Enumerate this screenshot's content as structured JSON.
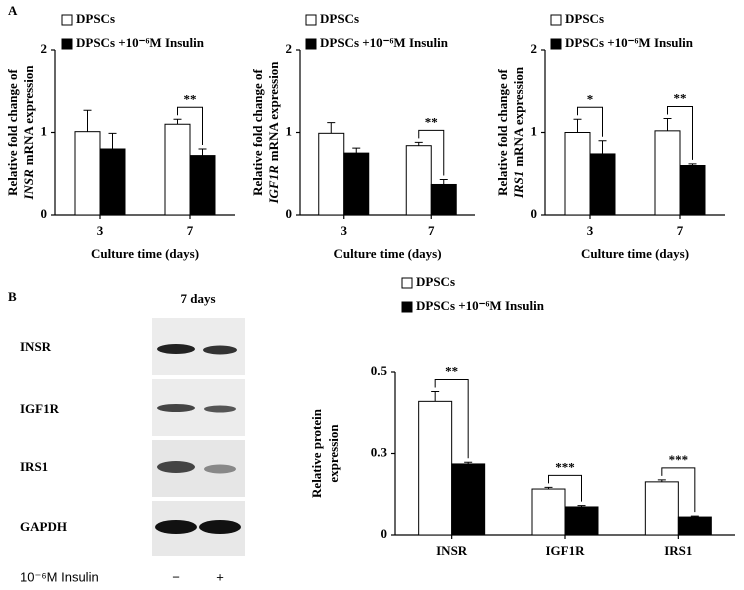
{
  "panels": [
    "A",
    "B"
  ],
  "chart_data": [
    {
      "type": "bar",
      "ylabel": {
        "line1": "Relative fold change of",
        "gene": "INSR",
        "line2": "mRNA expression"
      },
      "xlabel": "Culture time (days)",
      "categories": [
        "3",
        "7"
      ],
      "ylim": [
        0,
        2
      ],
      "yticks": [
        0,
        1,
        2
      ],
      "series": [
        {
          "name": "DPSCs",
          "color": "#ffffff",
          "values": [
            1.01,
            1.1
          ],
          "errors": [
            0.26,
            0.06
          ]
        },
        {
          "name": "DPSCs +10⁻⁶M Insulin",
          "color": "#000000",
          "values": [
            0.8,
            0.72
          ],
          "errors": [
            0.19,
            0.08
          ]
        }
      ],
      "significance": [
        null,
        "**"
      ]
    },
    {
      "type": "bar",
      "ylabel": {
        "line1": "Relative fold change of",
        "gene": "IGF1R",
        "line2": "mRNA expression"
      },
      "xlabel": "Culture time (days)",
      "categories": [
        "3",
        "7"
      ],
      "ylim": [
        0,
        2
      ],
      "yticks": [
        0,
        1,
        2
      ],
      "series": [
        {
          "name": "DPSCs",
          "color": "#ffffff",
          "values": [
            0.99,
            0.84
          ],
          "errors": [
            0.13,
            0.04
          ]
        },
        {
          "name": "DPSCs +10⁻⁶M Insulin",
          "color": "#000000",
          "values": [
            0.75,
            0.37
          ],
          "errors": [
            0.06,
            0.06
          ]
        }
      ],
      "significance": [
        null,
        "**"
      ]
    },
    {
      "type": "bar",
      "ylabel": {
        "line1": "Relative fold change of",
        "gene": "IRS1",
        "line2": "mRNA expression"
      },
      "xlabel": "Culture time (days)",
      "categories": [
        "3",
        "7"
      ],
      "ylim": [
        0,
        2
      ],
      "yticks": [
        0,
        1,
        2
      ],
      "series": [
        {
          "name": "DPSCs",
          "color": "#ffffff",
          "values": [
            1.0,
            1.02
          ],
          "errors": [
            0.16,
            0.15
          ]
        },
        {
          "name": "DPSCs +10⁻⁶M Insulin",
          "color": "#000000",
          "values": [
            0.74,
            0.6
          ],
          "errors": [
            0.16,
            0.02
          ]
        }
      ],
      "significance": [
        "*",
        "**"
      ]
    },
    {
      "type": "bar",
      "ylabel": {
        "line1": "Relative protein",
        "line2": "expression"
      },
      "categories": [
        "INSR",
        "IGF1R",
        "IRS1"
      ],
      "ylim": [
        0,
        0.5
      ],
      "yticks": [
        0,
        {
          "value": 0.25,
          "label": "0.3"
        },
        0.5
      ],
      "series": [
        {
          "name": "DPSCs",
          "color": "#ffffff",
          "values": [
            0.41,
            0.141,
            0.163
          ],
          "errors": [
            0.03,
            0.005,
            0.006
          ]
        },
        {
          "name": "DPSCs +10⁻⁶M Insulin",
          "color": "#000000",
          "values": [
            0.218,
            0.086,
            0.055
          ],
          "errors": [
            0.005,
            0.004,
            0.003
          ]
        }
      ],
      "significance": [
        "**",
        "***",
        "***"
      ]
    }
  ],
  "blot": {
    "title": "7 days",
    "rows": [
      "INSR",
      "IGF1R",
      "IRS1",
      "GAPDH"
    ],
    "treatment": "10⁻⁶M Insulin",
    "lanes": [
      "−",
      "+"
    ]
  }
}
